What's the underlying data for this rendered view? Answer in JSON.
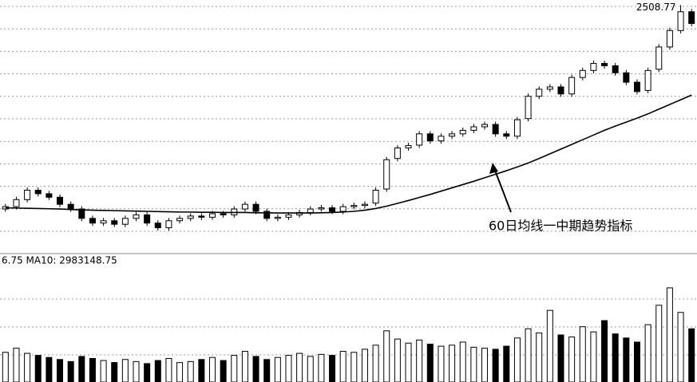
{
  "chart_data": {
    "type": "candlestick",
    "annotation": "60日均线一中期趋势指标",
    "volume_label": "6.75 MA10: 2983148.75",
    "up_color": "#ffffff",
    "down_color": "#000000",
    "ma60_color": "#000000",
    "ylim": [
      1450,
      2530
    ],
    "volume_ylim": [
      0,
      12000000
    ],
    "opens": [
      1640,
      1650,
      1680,
      1720,
      1705,
      1690,
      1660,
      1640,
      1600,
      1580,
      1590,
      1575,
      1600,
      1615,
      1580,
      1560,
      1590,
      1600,
      1610,
      1605,
      1620,
      1615,
      1640,
      1660,
      1630,
      1600,
      1605,
      1615,
      1625,
      1640,
      1645,
      1630,
      1650,
      1655,
      1665,
      1725,
      1855,
      1900,
      1912,
      1960,
      1930,
      1950,
      1960,
      1975,
      1990,
      2000,
      1960,
      1950,
      2025,
      2120,
      2150,
      2160,
      2130,
      2200,
      2230,
      2260,
      2250,
      2220,
      2180,
      2145,
      2235,
      2330,
      2400,
      2480
    ],
    "highs": [
      1662,
      1692,
      1732,
      1732,
      1717,
      1702,
      1672,
      1652,
      1612,
      1602,
      1602,
      1612,
      1627,
      1627,
      1592,
      1602,
      1612,
      1622,
      1622,
      1632,
      1632,
      1652,
      1672,
      1672,
      1642,
      1617,
      1627,
      1637,
      1652,
      1657,
      1657,
      1662,
      1667,
      1672,
      1732,
      1862,
      1912,
      1922,
      1972,
      1972,
      1962,
      1972,
      1987,
      2002,
      2012,
      2012,
      1972,
      2032,
      2132,
      2162,
      2172,
      2172,
      2212,
      2242,
      2272,
      2272,
      2262,
      2232,
      2192,
      2242,
      2342,
      2412,
      2508.77,
      2492
    ],
    "lows": [
      1628,
      1638,
      1668,
      1693,
      1678,
      1648,
      1628,
      1588,
      1568,
      1568,
      1563,
      1563,
      1588,
      1568,
      1548,
      1548,
      1578,
      1588,
      1593,
      1593,
      1603,
      1603,
      1628,
      1618,
      1588,
      1588,
      1593,
      1603,
      1613,
      1628,
      1618,
      1618,
      1638,
      1643,
      1653,
      1713,
      1843,
      1888,
      1900,
      1918,
      1918,
      1938,
      1948,
      1963,
      1978,
      1948,
      1938,
      1938,
      2013,
      2108,
      2138,
      2118,
      2118,
      2188,
      2218,
      2238,
      2208,
      2168,
      2128,
      2133,
      2223,
      2318,
      2388,
      2418
    ],
    "closes": [
      1650,
      1680,
      1720,
      1705,
      1690,
      1660,
      1640,
      1600,
      1580,
      1590,
      1575,
      1600,
      1615,
      1580,
      1560,
      1590,
      1600,
      1610,
      1605,
      1620,
      1615,
      1640,
      1660,
      1630,
      1600,
      1605,
      1615,
      1625,
      1640,
      1645,
      1630,
      1650,
      1655,
      1660,
      1720,
      1850,
      1900,
      1910,
      1960,
      1930,
      1950,
      1960,
      1975,
      1990,
      2000,
      1960,
      1950,
      2020,
      2120,
      2150,
      2160,
      2130,
      2200,
      2230,
      2260,
      2250,
      2220,
      2180,
      2140,
      2230,
      2330,
      2400,
      2480,
      2430
    ],
    "ma60": [
      1645,
      1644,
      1643,
      1642,
      1641,
      1640,
      1638,
      1636,
      1635,
      1634,
      1633,
      1632,
      1631,
      1630,
      1629,
      1628,
      1627,
      1627,
      1626,
      1626,
      1625,
      1625,
      1625,
      1624,
      1624,
      1623,
      1623,
      1623,
      1623,
      1624,
      1625,
      1627,
      1630,
      1635,
      1642,
      1652,
      1664,
      1676,
      1689,
      1702,
      1716,
      1730,
      1744,
      1758,
      1773,
      1788,
      1803,
      1819,
      1836,
      1855,
      1875,
      1895,
      1915,
      1935,
      1955,
      1975,
      1993,
      2010,
      2027,
      2045,
      2065,
      2085,
      2105,
      2125
    ],
    "volumes": [
      2900000,
      3300000,
      2800000,
      2600000,
      2400000,
      2200000,
      2000000,
      2500000,
      2300000,
      2100000,
      1900000,
      2200000,
      2000000,
      1800000,
      2100000,
      2300000,
      1900000,
      2000000,
      2200000,
      2400000,
      2100000,
      2600000,
      3000000,
      2500000,
      2200000,
      2400000,
      2600000,
      2800000,
      2500000,
      2700000,
      2600000,
      3000000,
      2900000,
      3200000,
      3600000,
      5000000,
      4200000,
      3800000,
      4100000,
      3700000,
      3500000,
      3600000,
      3900000,
      3400000,
      3300000,
      3200000,
      3500000,
      4300000,
      5200000,
      4800000,
      7000000,
      4600000,
      4400000,
      5400000,
      4900000,
      6000000,
      4700000,
      4300000,
      3900000,
      5600000,
      7500000,
      9200000,
      6800000,
      5200000
    ]
  }
}
